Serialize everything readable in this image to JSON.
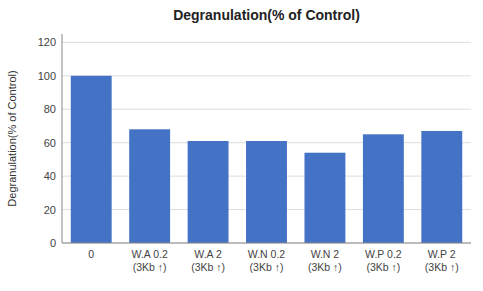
{
  "chart_data": {
    "type": "bar",
    "title": "Degranulation(% of Control)",
    "ylabel": "Degranulation(% of Control)",
    "categories": [
      "0",
      "W.A 0.2\n(3Kb ↑)",
      "W.A 2\n(3Kb ↑)",
      "W.N 0.2\n(3Kb ↑)",
      "W.N 2\n(3Kb ↑)",
      "W.P 0.2\n(3Kb ↑)",
      "W.P 2\n(3Kb ↑)"
    ],
    "values": [
      100,
      68,
      61,
      61,
      54,
      65,
      67
    ],
    "color": "#4472C4",
    "ylim": [
      0,
      125
    ],
    "yticks": [
      0,
      20,
      40,
      60,
      80,
      100,
      120
    ],
    "grid": true
  }
}
